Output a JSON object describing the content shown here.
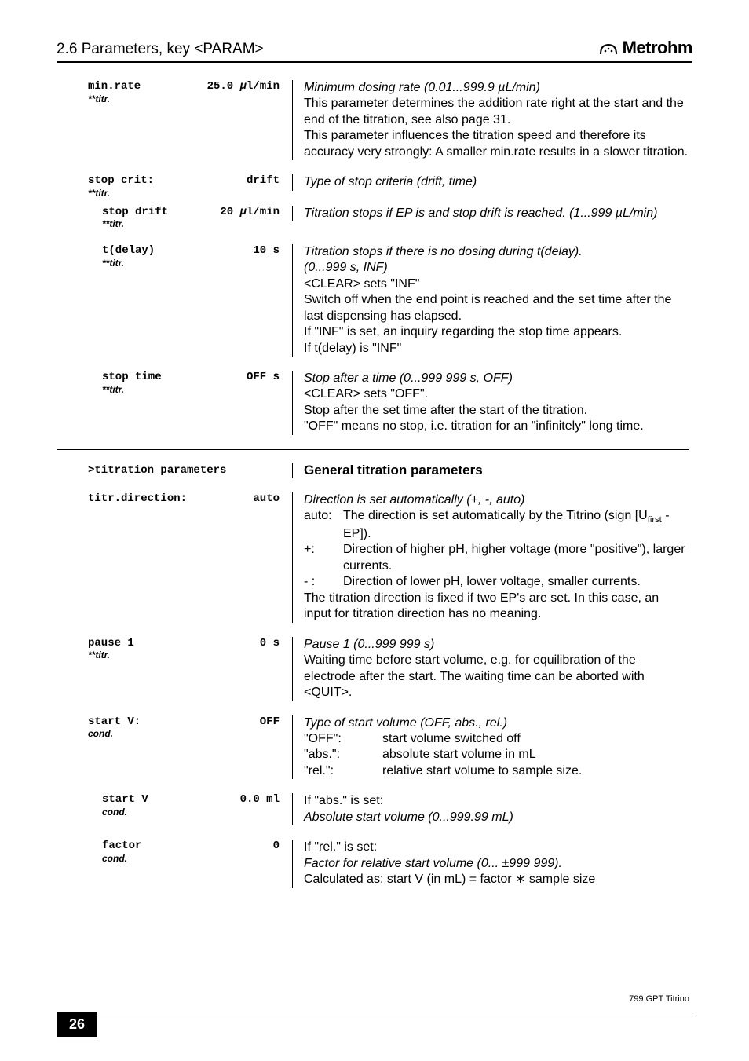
{
  "header": {
    "title": "2.6 Parameters, key <PARAM>",
    "brand": "Metrohm"
  },
  "rows": [
    {
      "indent": false,
      "name": "min.rate",
      "note": "**titr.",
      "value_html": "25.0 <span style='font-style:italic'>µ</span>l/min",
      "desc_html": "<span class='ital'>Minimum dosing rate (0.01...999.9 µL/min)</span><br>This parameter determines the addition rate right at the start and the end of the titration, see also page 31.<br>This parameter influences the titration speed and therefore its accuracy very strongly:  A smaller min.rate results in a slower titration."
    },
    {
      "indent": false,
      "tight": true,
      "name": "stop crit:",
      "note": "**titr.",
      "value_html": "drift",
      "desc_html": "<span class='ital'>Type of stop criteria (drift, time)</span>"
    },
    {
      "indent": true,
      "name": "stop drift",
      "note": "**titr.",
      "value_html": "20 <span style='font-style:italic'>µ</span>l/min",
      "desc_html": "<span class='ital'>Titration stops if EP is and stop drift is reached. (1...999 µL/min)</span>"
    },
    {
      "indent": true,
      "name": "t(delay)",
      "note": "**titr.",
      "value_html": "10 s",
      "desc_html": "<span class='ital'>Titration stops if there is no dosing during t(delay).<br>(0...999 s, INF)</span><br>&lt;CLEAR&gt; sets \"INF\"<br>Switch off when the end point is reached and the set time after the last dispensing has elapsed.<br>If \"INF\" is set, an inquiry regarding the stop time appears.<br>If t(delay) is \"INF\""
    },
    {
      "indent": true,
      "name": "stop time",
      "note": "**titr.",
      "value_html": "OFF s",
      "desc_html": "<span class='ital'>Stop after a time (0...999 999 s, OFF)</span><br>&lt;CLEAR&gt; sets \"OFF\".<br>Stop after the set time after the start of the titration.<br>\"OFF\" means no stop, i.e. titration for an \"infinitely\" long time."
    }
  ],
  "section2_head": {
    "left": ">titration parameters",
    "right": "General titration parameters"
  },
  "rows2": [
    {
      "indent": false,
      "name": "titr.direction:",
      "note": "",
      "value_html": "auto",
      "desc_html": "<span class='ital'>Direction is set automatically (+, -, auto)</span><div class='opt-row'><span class='opt-key'>auto:</span><span class='opt-val'>The direction is set automatically by the Titrino (sign [U<sub>first</sub> - EP]).</span></div><div class='opt-row'><span class='opt-key'>+:</span><span class='opt-val'>Direction of higher pH, higher voltage (more \"positive\"), larger currents.</span></div><div class='opt-row'><span class='opt-key'>- :</span><span class='opt-val'>Direction of lower pH, lower voltage, smaller currents.</span></div>The titration direction is fixed if two EP's are set. In this case, an input for titration direction has no meaning."
    },
    {
      "indent": false,
      "name": "pause 1",
      "note": "**titr.",
      "value_html": "0 s",
      "desc_html": "<span class='ital'>Pause 1 (0...999 999 s)</span><br>Waiting time before start volume, e.g. for equilibration of the electrode after the start. The waiting time can be aborted with &lt;QUIT&gt;."
    },
    {
      "indent": false,
      "name": "start V:",
      "note": "cond.",
      "value_html": "OFF",
      "desc_html": "<span class='ital'>Type of start volume (OFF, abs., rel.)</span><div class='opt-row'><span class='opt-key-w'>\"OFF\":</span><span class='opt-val'>start volume switched off</span></div><div class='opt-row'><span class='opt-key-w'>\"abs.\":</span><span class='opt-val'>absolute start volume in mL</span></div><div class='opt-row'><span class='opt-key-w'>\"rel.\":</span><span class='opt-val'>relative start volume to sample size.</span></div>"
    },
    {
      "indent": true,
      "name": "start V",
      "note": "cond.",
      "value_html": "0.0 ml",
      "desc_html": "If \"abs.\" is set:<br><span class='ital'>Absolute start volume (0...999.99 mL)</span>"
    },
    {
      "indent": true,
      "name": "factor",
      "note": "cond.",
      "value_html": "0",
      "desc_html": "If \"rel.\" is set:<br><span class='ital'>Factor for  relative start volume (0... ±999 999).</span><br>Calculated as: start V (in mL) = factor ∗ sample size"
    }
  ],
  "footer": {
    "product": "799 GPT Titrino",
    "page": "26"
  }
}
